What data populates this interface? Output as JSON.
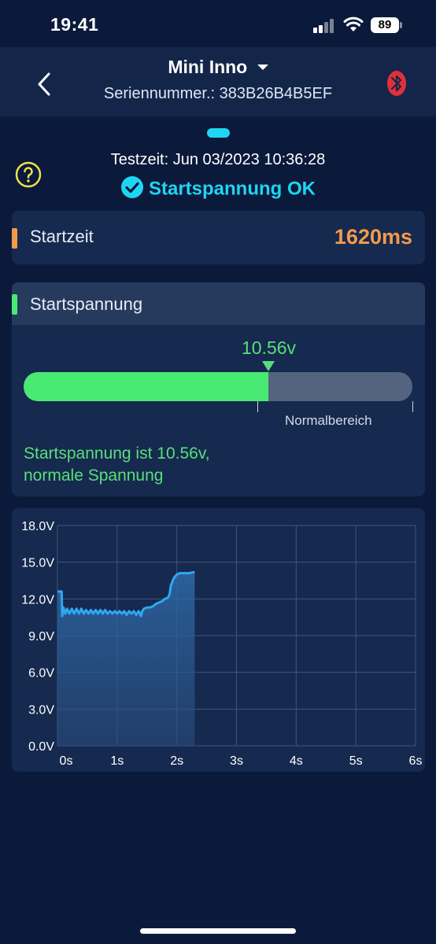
{
  "status_bar": {
    "time": "19:41",
    "battery": "89"
  },
  "header": {
    "title": "Mini Inno",
    "serial": "Seriennummer.: 383B26B4B5EF"
  },
  "test": {
    "time": "Testzeit: Jun 03/2023 10:36:28",
    "status": "Startspannung OK"
  },
  "start_time": {
    "label": "Startzeit",
    "value": "1620ms"
  },
  "start_voltage": {
    "label": "Startspannung",
    "value": "10.56v",
    "fill_fraction": 0.63,
    "range_label": "Normalbereich",
    "message_line1": "Startspannung ist 10.56v,",
    "message_line2": "normale Spannung"
  },
  "colors": {
    "accent_cyan": "#1fd5f2",
    "good_green": "#57e07a",
    "start_orange": "#f39a4a",
    "bluetooth_red": "#e0303a",
    "line_blue": "#2ea8f0"
  },
  "chart_data": {
    "type": "area",
    "x_ticks": [
      "0s",
      "1s",
      "2s",
      "3s",
      "4s",
      "5s",
      "6s"
    ],
    "y_ticks": [
      "0.0V",
      "3.0V",
      "6.0V",
      "9.0V",
      "12.0V",
      "15.0V",
      "18.0V"
    ],
    "xlim": [
      0,
      6
    ],
    "ylim": [
      0,
      18
    ],
    "grid": true,
    "x": [
      0,
      0.07,
      0.08,
      0.1,
      0.13,
      0.16,
      0.2,
      0.24,
      0.28,
      0.32,
      0.36,
      0.4,
      0.44,
      0.48,
      0.52,
      0.56,
      0.6,
      0.64,
      0.68,
      0.72,
      0.76,
      0.8,
      0.84,
      0.88,
      0.92,
      0.96,
      1.0,
      1.04,
      1.08,
      1.12,
      1.16,
      1.2,
      1.24,
      1.28,
      1.32,
      1.36,
      1.4,
      1.42,
      1.45,
      1.5,
      1.55,
      1.6,
      1.65,
      1.7,
      1.75,
      1.8,
      1.85,
      1.88,
      1.9,
      1.95,
      2.0,
      2.05,
      2.1,
      2.2,
      2.3
    ],
    "values": [
      12.6,
      12.6,
      10.6,
      11.3,
      10.8,
      11.2,
      10.8,
      11.2,
      10.8,
      11.2,
      10.8,
      11.2,
      10.8,
      11.1,
      10.8,
      11.1,
      10.8,
      11.1,
      10.8,
      11.1,
      10.8,
      11.1,
      10.8,
      11.0,
      10.8,
      11.0,
      10.8,
      11.0,
      10.8,
      11.0,
      10.7,
      11.0,
      10.8,
      11.0,
      10.7,
      11.0,
      10.6,
      11.0,
      11.2,
      11.3,
      11.3,
      11.4,
      11.6,
      11.7,
      11.8,
      12.0,
      12.1,
      12.4,
      13.1,
      13.7,
      14.0,
      14.1,
      14.1,
      14.1,
      14.2
    ]
  }
}
